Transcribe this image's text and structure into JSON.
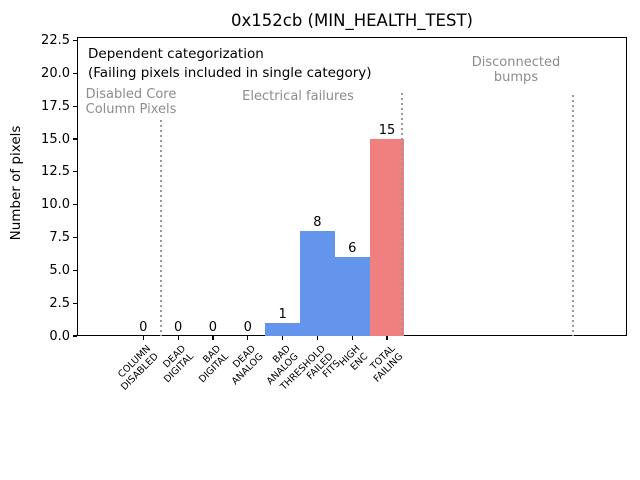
{
  "chart_data": {
    "type": "bar",
    "title": "0x152cb (MIN_HEALTH_TEST)",
    "ylabel": "Number of pixels",
    "xlabel": "",
    "categories": [
      [
        "COLUMN",
        "DISABLED"
      ],
      [
        "DEAD",
        "DIGITAL"
      ],
      [
        "BAD",
        "DIGITAL"
      ],
      [
        "DEAD",
        "ANALOG"
      ],
      [
        "BAD",
        "ANALOG"
      ],
      [
        "THRESHOLD",
        "FAILED",
        "FITS"
      ],
      [
        "HIGH",
        "ENC"
      ],
      [
        "TOTAL",
        "FAILING"
      ]
    ],
    "values": [
      0,
      0,
      0,
      0,
      1,
      8,
      6,
      15
    ],
    "value_labels": [
      "0",
      "0",
      "0",
      "0",
      "1",
      "8",
      "6",
      "15"
    ],
    "bar_colors": [
      "#6495ed",
      "#6495ed",
      "#6495ed",
      "#6495ed",
      "#6495ed",
      "#6495ed",
      "#6495ed",
      "#f08080"
    ],
    "yticks": [
      "0.0",
      "2.5",
      "5.0",
      "7.5",
      "10.0",
      "12.5",
      "15.0",
      "17.5",
      "20.0",
      "22.5"
    ],
    "ylim": [
      0,
      22.8
    ],
    "grid": false,
    "legend": null,
    "annotations": {
      "note_lines": [
        "Dependent categorization",
        "(Failing pixels included in single category)"
      ],
      "regions": [
        {
          "label_lines": [
            "Disabled Core",
            "Column Pixels"
          ]
        },
        {
          "label_lines": [
            "Electrical failures"
          ]
        },
        {
          "label_lines": [
            "Disconnected",
            "bumps"
          ]
        }
      ]
    }
  },
  "colors": {
    "bar_blue": "#6495ed",
    "bar_red": "#f08080",
    "annotation_gray": "#8c8c8c",
    "divider_gray": "#999999",
    "axis_black": "#000000",
    "background": "#ffffff"
  }
}
